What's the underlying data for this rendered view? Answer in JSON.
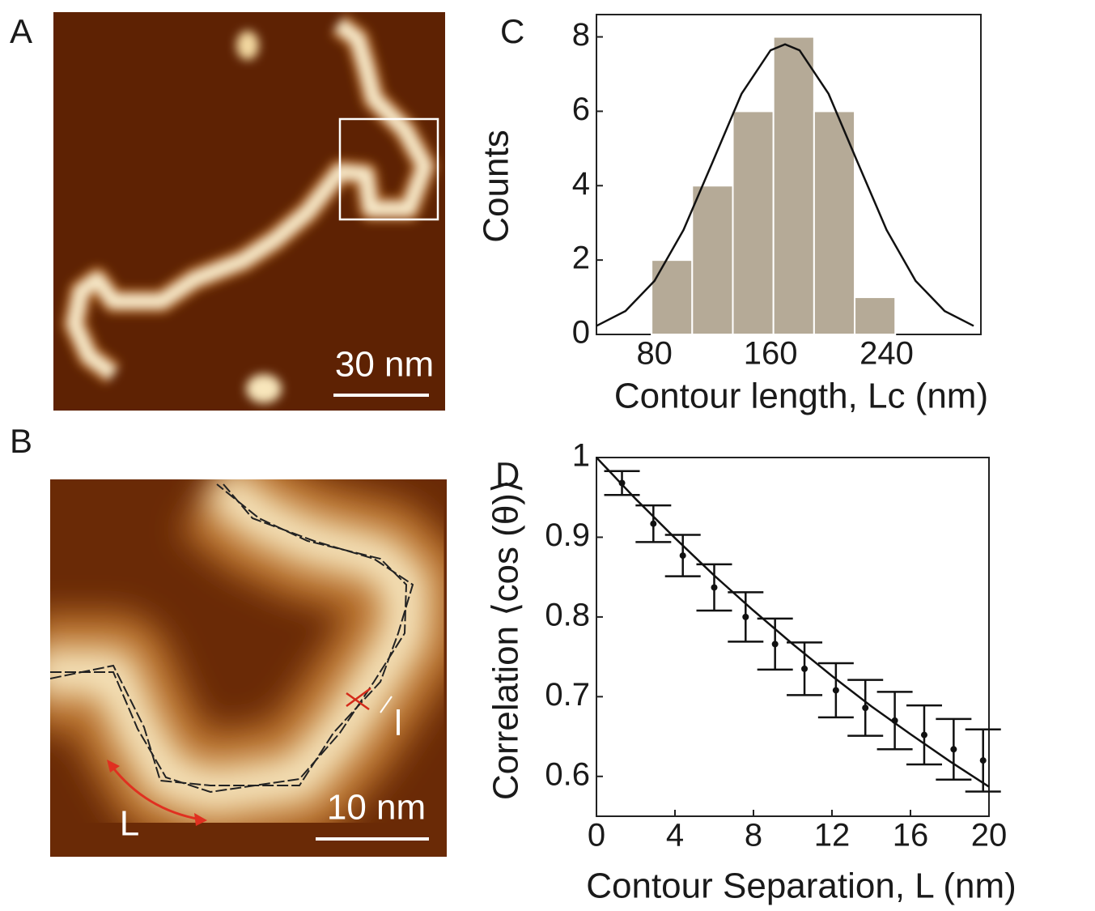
{
  "images": [
    {
      "panel_label": "A",
      "scale_bar": "30 nm"
    },
    {
      "panel_label": "B",
      "scale_bar": "10 nm",
      "annotations": [
        "L",
        "l"
      ]
    }
  ],
  "chart_data": [
    {
      "type": "histogram",
      "panel_label": "C",
      "xlabel": "Contour length, Lc (nm)",
      "ylabel": "Counts",
      "bins": [
        78,
        106,
        134,
        162,
        190,
        218,
        246
      ],
      "values": [
        2,
        4,
        6,
        8,
        6,
        1
      ],
      "color": "#b5aa97",
      "curve": {
        "x": [
          40,
          60,
          80,
          100,
          120,
          140,
          160,
          170,
          180,
          200,
          220,
          240,
          260,
          280,
          300
        ],
        "values": [
          0.23,
          0.63,
          1.44,
          2.81,
          4.63,
          6.47,
          7.64,
          7.8,
          7.64,
          6.47,
          4.63,
          2.81,
          1.44,
          0.63,
          0.23
        ]
      },
      "xlim": [
        40,
        305
      ],
      "xticks": [
        80,
        160,
        240
      ],
      "ylim": [
        0,
        8.6
      ],
      "yticks": [
        0,
        2,
        4,
        6,
        8
      ]
    },
    {
      "type": "errorbar",
      "panel_label": "D",
      "xlabel": "Contour Separation, L (nm)",
      "ylabel": "Correlation ⟨cos (θ)⟩",
      "x": [
        1.3,
        2.9,
        4.4,
        6.0,
        7.6,
        9.1,
        10.6,
        12.2,
        13.7,
        15.2,
        16.7,
        18.2,
        19.7
      ],
      "values": [
        0.968,
        0.917,
        0.877,
        0.837,
        0.8,
        0.766,
        0.735,
        0.708,
        0.686,
        0.67,
        0.652,
        0.634,
        0.62
      ],
      "errors": [
        0.015,
        0.023,
        0.026,
        0.029,
        0.031,
        0.032,
        0.033,
        0.034,
        0.035,
        0.036,
        0.037,
        0.038,
        0.039
      ],
      "curve": {
        "x": [
          0,
          2,
          4,
          6,
          8,
          10,
          12,
          14,
          16,
          18,
          20
        ],
        "values": [
          1,
          0.948,
          0.899,
          0.852,
          0.808,
          0.766,
          0.726,
          0.688,
          0.653,
          0.619,
          0.587
        ]
      },
      "xlim": [
        0,
        20
      ],
      "xticks": [
        0,
        4,
        8,
        12,
        16,
        20
      ],
      "ylim": [
        0.55,
        1.0
      ],
      "yticks": [
        0.6,
        0.7,
        0.8,
        0.9,
        1
      ]
    }
  ]
}
